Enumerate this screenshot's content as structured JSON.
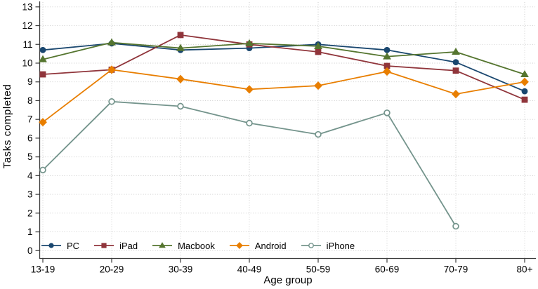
{
  "chart_data": {
    "type": "line",
    "title": "",
    "xlabel": "Age group",
    "ylabel": "Tasks completed",
    "categories": [
      "13-19",
      "20-29",
      "30-39",
      "40-49",
      "50-59",
      "60-69",
      "70-79",
      "80+"
    ],
    "yticks": [
      0,
      1,
      2,
      3,
      4,
      5,
      6,
      7,
      8,
      9,
      10,
      11,
      12,
      13
    ],
    "ylim": [
      0,
      13
    ],
    "grid": "dotted-horizontal-and-vertical",
    "legend_position": "bottom-left-inside-horizontal",
    "series": [
      {
        "name": "PC",
        "marker": "circle",
        "color": "#1a476f",
        "values": [
          10.7,
          11.05,
          10.7,
          10.8,
          11.0,
          10.7,
          10.05,
          8.5
        ]
      },
      {
        "name": "iPad",
        "marker": "square",
        "color": "#90353b",
        "values": [
          9.4,
          9.65,
          11.5,
          11.0,
          10.6,
          9.85,
          9.6,
          8.05
        ]
      },
      {
        "name": "Macbook",
        "marker": "triangle",
        "color": "#55752f",
        "values": [
          10.2,
          11.1,
          10.8,
          11.05,
          10.9,
          10.35,
          10.6,
          9.4
        ]
      },
      {
        "name": "Android",
        "marker": "diamond",
        "color": "#e87e00",
        "values": [
          6.85,
          9.65,
          9.15,
          8.6,
          8.8,
          9.55,
          8.35,
          9.0
        ]
      },
      {
        "name": "iPhone",
        "marker": "open-circle",
        "color": "#74948c",
        "values": [
          4.3,
          7.95,
          7.7,
          6.8,
          6.2,
          7.35,
          1.3,
          null
        ]
      }
    ]
  },
  "style": {
    "axis_color": "#3d3d3d",
    "grid_color": "#c7c7c7",
    "text_color": "#000000",
    "background": "#ffffff"
  }
}
